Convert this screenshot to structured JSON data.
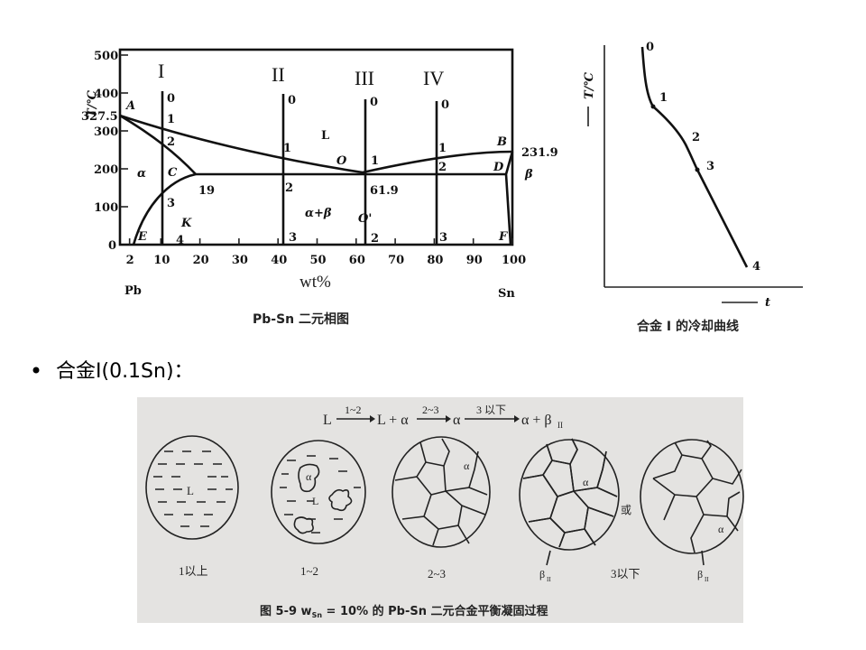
{
  "phase_diagram": {
    "y_ticks": [
      "500",
      "400",
      "300",
      "200",
      "100",
      "0"
    ],
    "y_axis_label": "T/℃",
    "melting_pb": "327.5",
    "melting_sn": "231.9",
    "x_ticks": [
      "2",
      "10",
      "20",
      "30",
      "40",
      "50",
      "60",
      "70",
      "80",
      "90",
      "100"
    ],
    "x_axis_label": "wt%",
    "left_element": "Pb",
    "right_element": "Sn",
    "alloys": [
      "I",
      "II",
      "III",
      "IV"
    ],
    "points": {
      "A": "A",
      "B": "B",
      "C": "C",
      "D": "D",
      "E": "E",
      "F": "F",
      "K": "K",
      "O": "O",
      "O2": "O'"
    },
    "regions": {
      "L": "L",
      "alpha": "α",
      "alpha_beta": "α+β",
      "beta": "β"
    },
    "eutectic_left": "19",
    "eutectic_comp": "61.9",
    "alloy_I_points": [
      "0",
      "1",
      "2",
      "3",
      "4"
    ],
    "alloy_II_points": [
      "0",
      "1",
      "2",
      "3"
    ],
    "alloy_III_points": [
      "0",
      "1",
      "2"
    ],
    "alloy_IV_points": [
      "0",
      "1",
      "2",
      "3"
    ],
    "caption": "Pb-Sn 二元相图"
  },
  "cooling_curve": {
    "y_axis_label": "T/℃",
    "x_axis_label": "t",
    "points": [
      "0",
      "1",
      "2",
      "3",
      "4"
    ],
    "caption": "合金 I 的冷却曲线"
  },
  "bullet": {
    "text": "合金I(0.1Sn)："
  },
  "solidification": {
    "sequence": {
      "s0": "L",
      "a1": "1~2",
      "s1": "L + α",
      "a2": "2~3",
      "s2": "α",
      "a3": "3 以下",
      "s3": "α + β",
      "s3_sub": "II"
    },
    "stages": [
      "1以上",
      "1~2",
      "2~3",
      "3以下"
    ],
    "or_label": "或",
    "labels": {
      "L": "L",
      "alpha": "α",
      "beta": "β",
      "beta_sub": "II"
    },
    "caption": "图 5-9   w",
    "caption_sub": "Sn",
    "caption_rest": " = 10% 的 Pb-Sn 二元合金平衡凝固过程",
    "background": "#e4e3e1"
  }
}
